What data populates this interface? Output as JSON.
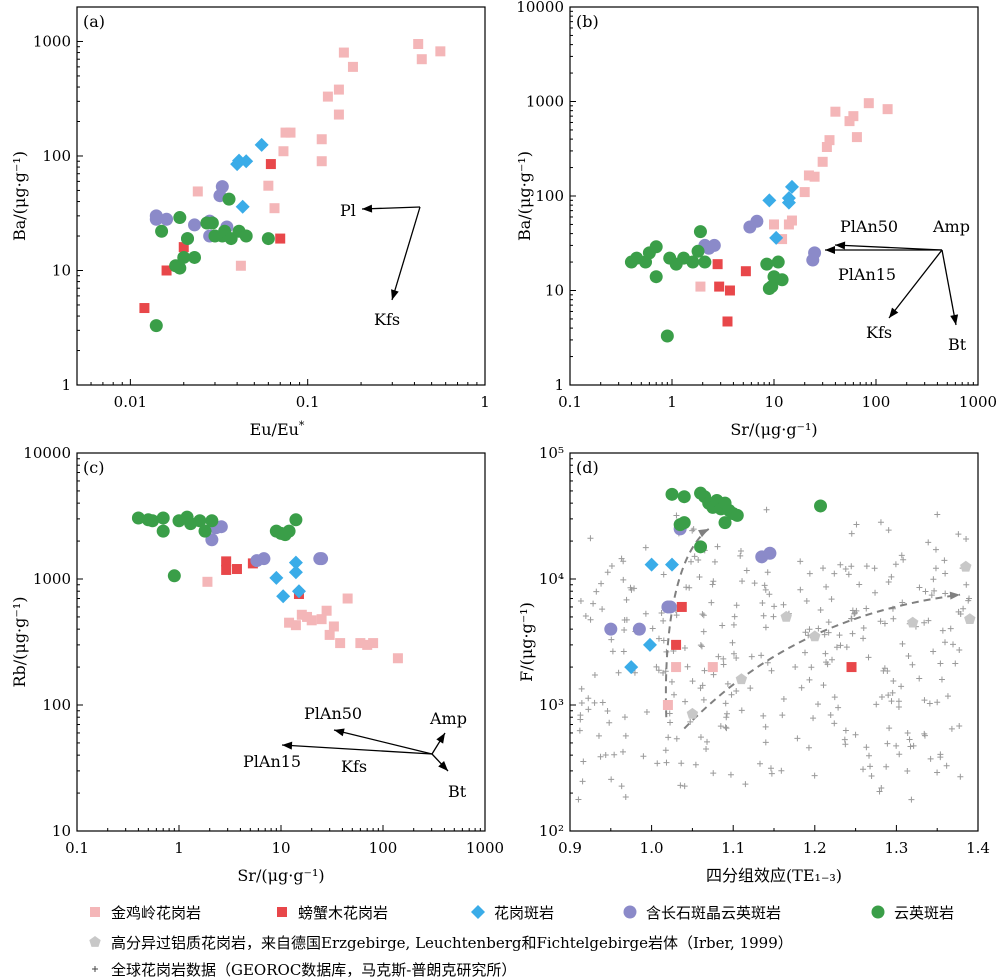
{
  "colors": {
    "jinjiling": "#f4b6b8",
    "pangxiemu": "#e8474a",
    "granite_porphyry": "#3aace8",
    "feldspar_qp": "#8b8ac9",
    "quartz_porphyry": "#3a9e48",
    "hf_granite": "#c8c8c8",
    "global": "#9a9a9a",
    "arrow_gray": "#808080"
  },
  "legend": {
    "jinjiling": "金鸡岭花岗岩",
    "pangxiemu": "螃蟹木花岗岩",
    "granite_porphyry": "花岗斑岩",
    "feldspar_qp": "含长石斑晶云英斑岩",
    "quartz_porphyry": "云英斑岩",
    "hf_granite": "高分异过铝质花岗岩，来自德国Erzgebirge, Leuchtenberg和Fichtelgebirge岩体（Irber, 1999）",
    "global": "全球花岗岩数据（GEOROC数据库，马克斯-普朗克研究所）"
  },
  "chart_data": [
    {
      "type": "scatter",
      "panel": "(a)",
      "xscale": "log",
      "yscale": "log",
      "xlim": [
        0.005,
        1
      ],
      "ylim": [
        1,
        2000
      ],
      "xlabel": "Eu/Eu*",
      "ylabel": "Ba/(μg·g⁻¹)",
      "xticks": [
        "0.01",
        "0.1",
        "1"
      ],
      "yticks": [
        "1",
        "10",
        "100",
        "1000"
      ],
      "series": [
        {
          "key": "jinjiling",
          "marker": "square",
          "points": [
            [
              0.08,
              160
            ],
            [
              0.075,
              160
            ],
            [
              0.12,
              140
            ],
            [
              0.13,
              330
            ],
            [
              0.15,
              380
            ],
            [
              0.16,
              800
            ],
            [
              0.18,
              600
            ],
            [
              0.12,
              90
            ],
            [
              0.15,
              230
            ],
            [
              0.42,
              950
            ],
            [
              0.44,
              700
            ],
            [
              0.56,
              820
            ],
            [
              0.06,
              55
            ],
            [
              0.065,
              35
            ],
            [
              0.073,
              110
            ],
            [
              0.042,
              11
            ],
            [
              0.024,
              49
            ]
          ]
        },
        {
          "key": "pangxiemu",
          "marker": "square",
          "points": [
            [
              0.012,
              4.7
            ],
            [
              0.016,
              10
            ],
            [
              0.02,
              16
            ],
            [
              0.062,
              85
            ],
            [
              0.07,
              19
            ]
          ]
        },
        {
          "key": "granite_porphyry",
          "marker": "diamond",
          "points": [
            [
              0.041,
              91
            ],
            [
              0.043,
              36
            ],
            [
              0.045,
              90
            ],
            [
              0.055,
              125
            ],
            [
              0.04,
              85
            ]
          ]
        },
        {
          "key": "feldspar_qp",
          "marker": "circle",
          "points": [
            [
              0.014,
              30
            ],
            [
              0.014,
              28
            ],
            [
              0.016,
              28
            ],
            [
              0.021,
              19
            ],
            [
              0.023,
              25
            ],
            [
              0.028,
              27
            ],
            [
              0.028,
              20
            ],
            [
              0.032,
              45
            ],
            [
              0.033,
              54
            ],
            [
              0.035,
              24
            ]
          ]
        },
        {
          "key": "quartz_porphyry",
          "marker": "circle",
          "points": [
            [
              0.014,
              3.3
            ],
            [
              0.015,
              22
            ],
            [
              0.018,
              11
            ],
            [
              0.019,
              10.5
            ],
            [
              0.019,
              29
            ],
            [
              0.02,
              13
            ],
            [
              0.021,
              19
            ],
            [
              0.023,
              13
            ],
            [
              0.027,
              26
            ],
            [
              0.029,
              26
            ],
            [
              0.03,
              20
            ],
            [
              0.033,
              20
            ],
            [
              0.034,
              22
            ],
            [
              0.036,
              42
            ],
            [
              0.037,
              19
            ],
            [
              0.041,
              22
            ],
            [
              0.045,
              20
            ],
            [
              0.06,
              19
            ]
          ]
        }
      ],
      "annotations": [
        "Pl",
        "Kfs"
      ]
    },
    {
      "type": "scatter",
      "panel": "(b)",
      "xscale": "log",
      "yscale": "log",
      "xlim": [
        0.1,
        1000
      ],
      "ylim": [
        1,
        10000
      ],
      "xlabel": "Sr/(μg·g⁻¹)",
      "ylabel": "Ba/(μg·g⁻¹)",
      "xticks": [
        "0.1",
        "1",
        "10",
        "100",
        "1000"
      ],
      "yticks": [
        "1",
        "10",
        "100",
        "1000",
        "10000"
      ],
      "series": [
        {
          "key": "jinjiling",
          "marker": "square",
          "points": [
            [
              1.9,
              11
            ],
            [
              10,
              50
            ],
            [
              12,
              35
            ],
            [
              15,
              55
            ],
            [
              20,
              110
            ],
            [
              22,
              165
            ],
            [
              25,
              160
            ],
            [
              30,
              230
            ],
            [
              33,
              330
            ],
            [
              35,
              390
            ],
            [
              40,
              780
            ],
            [
              55,
              620
            ],
            [
              60,
              700
            ],
            [
              65,
              420
            ],
            [
              85,
              960
            ],
            [
              130,
              830
            ],
            [
              14,
              50
            ]
          ]
        },
        {
          "key": "pangxiemu",
          "marker": "square",
          "points": [
            [
              2.8,
              19
            ],
            [
              2.9,
              11
            ],
            [
              3.7,
              10
            ],
            [
              3.5,
              4.7
            ],
            [
              5.3,
              16
            ]
          ]
        },
        {
          "key": "granite_porphyry",
          "marker": "diamond",
          "points": [
            [
              9,
              90
            ],
            [
              10.5,
              36
            ],
            [
              14,
              85
            ],
            [
              15,
              125
            ],
            [
              14,
              95
            ]
          ]
        },
        {
          "key": "feldspar_qp",
          "marker": "circle",
          "points": [
            [
              2.1,
              30
            ],
            [
              2.3,
              28
            ],
            [
              2.6,
              30
            ],
            [
              5.8,
              47
            ],
            [
              6.8,
              54
            ],
            [
              25,
              25
            ],
            [
              24,
              21
            ]
          ]
        },
        {
          "key": "quartz_porphyry",
          "marker": "circle",
          "points": [
            [
              0.4,
              20
            ],
            [
              0.45,
              22
            ],
            [
              0.55,
              20
            ],
            [
              0.6,
              25
            ],
            [
              0.7,
              29
            ],
            [
              0.7,
              14
            ],
            [
              0.9,
              3.3
            ],
            [
              0.95,
              22
            ],
            [
              1.1,
              19
            ],
            [
              1.3,
              22
            ],
            [
              1.6,
              20
            ],
            [
              1.8,
              26
            ],
            [
              1.9,
              42
            ],
            [
              2.1,
              20
            ],
            [
              8.5,
              19
            ],
            [
              9,
              10.5
            ],
            [
              9.5,
              11
            ],
            [
              10,
              14
            ],
            [
              11,
              20
            ],
            [
              12,
              13
            ]
          ]
        }
      ],
      "annotations": [
        "PlAn50",
        "Amp",
        "PlAn15",
        "Kfs",
        "Bt"
      ]
    },
    {
      "type": "scatter",
      "panel": "(c)",
      "xscale": "log",
      "yscale": "log",
      "xlim": [
        0.1,
        1000
      ],
      "ylim": [
        10,
        10000
      ],
      "xlabel": "Sr/(μg·g⁻¹)",
      "ylabel": "Rb/(μg·g⁻¹)",
      "xticks": [
        "0.1",
        "1",
        "10",
        "100",
        "1000"
      ],
      "yticks": [
        "10",
        "100",
        "1000",
        "10000"
      ],
      "series": [
        {
          "key": "jinjiling",
          "marker": "square",
          "points": [
            [
              1.9,
              950
            ],
            [
              12,
              450
            ],
            [
              14,
              430
            ],
            [
              16,
              520
            ],
            [
              20,
              470
            ],
            [
              25,
              480
            ],
            [
              28,
              560
            ],
            [
              30,
              360
            ],
            [
              33,
              420
            ],
            [
              38,
              310
            ],
            [
              45,
              700
            ],
            [
              60,
              310
            ],
            [
              70,
              300
            ],
            [
              80,
              310
            ],
            [
              140,
              235
            ],
            [
              18,
              500
            ]
          ]
        },
        {
          "key": "pangxiemu",
          "marker": "square",
          "points": [
            [
              2.9,
              1380
            ],
            [
              2.9,
              1180
            ],
            [
              3.7,
              1200
            ],
            [
              5.3,
              1330
            ],
            [
              15,
              760
            ]
          ]
        },
        {
          "key": "granite_porphyry",
          "marker": "diamond",
          "points": [
            [
              9,
              1020
            ],
            [
              10.5,
              730
            ],
            [
              14,
              1350
            ],
            [
              15,
              800
            ],
            [
              14,
              1130
            ]
          ]
        },
        {
          "key": "feldspar_qp",
          "marker": "circle",
          "points": [
            [
              2.1,
              2050
            ],
            [
              2.3,
              2550
            ],
            [
              2.6,
              2600
            ],
            [
              5.8,
              1400
            ],
            [
              6.8,
              1450
            ],
            [
              25,
              1450
            ],
            [
              24,
              1450
            ]
          ]
        },
        {
          "key": "quartz_porphyry",
          "marker": "circle",
          "points": [
            [
              0.4,
              3050
            ],
            [
              0.5,
              2950
            ],
            [
              0.55,
              2900
            ],
            [
              0.7,
              3050
            ],
            [
              0.7,
              2400
            ],
            [
              0.9,
              1060
            ],
            [
              1.0,
              2900
            ],
            [
              1.2,
              3100
            ],
            [
              1.3,
              2750
            ],
            [
              1.6,
              2900
            ],
            [
              1.8,
              2400
            ],
            [
              2.1,
              2900
            ],
            [
              9,
              2400
            ],
            [
              10,
              2300
            ],
            [
              11,
              2250
            ],
            [
              12,
              2400
            ],
            [
              14,
              2950
            ]
          ]
        }
      ],
      "annotations": [
        "PlAn50",
        "Amp",
        "PlAn15",
        "Kfs",
        "Bt"
      ]
    },
    {
      "type": "scatter",
      "panel": "(d)",
      "xscale": "linear",
      "yscale": "log",
      "xlim": [
        0.9,
        1.4
      ],
      "ylim": [
        100,
        100000
      ],
      "xlabel": "四分组效应(TE₁₋₃)",
      "ylabel": "F/(μg·g⁻¹)",
      "xticks": [
        "0.9",
        "1.0",
        "1.1",
        "1.2",
        "1.3",
        "1.4"
      ],
      "yticks": [
        "10²",
        "10³",
        "10⁴",
        "10⁵"
      ],
      "series": [
        {
          "key": "jinjiling",
          "marker": "square",
          "points": [
            [
              1.02,
              1000
            ],
            [
              1.03,
              2000
            ],
            [
              1.075,
              2000
            ]
          ]
        },
        {
          "key": "pangxiemu",
          "marker": "square",
          "points": [
            [
              1.03,
              3000
            ],
            [
              1.037,
              6000
            ],
            [
              1.245,
              2000
            ]
          ]
        },
        {
          "key": "granite_porphyry",
          "marker": "diamond",
          "points": [
            [
              0.975,
              2000
            ],
            [
              0.998,
              3000
            ],
            [
              1.0,
              13000
            ],
            [
              1.025,
              13000
            ]
          ]
        },
        {
          "key": "feldspar_qp",
          "marker": "circle",
          "points": [
            [
              0.95,
              4000
            ],
            [
              0.985,
              4000
            ],
            [
              1.02,
              6000
            ],
            [
              1.023,
              6000
            ],
            [
              1.135,
              15000
            ],
            [
              1.145,
              16000
            ],
            [
              1.035,
              25000
            ]
          ]
        },
        {
          "key": "quartz_porphyry",
          "marker": "circle",
          "points": [
            [
              1.025,
              47000
            ],
            [
              1.04,
              45000
            ],
            [
              1.06,
              48000
            ],
            [
              1.065,
              45000
            ],
            [
              1.07,
              40000
            ],
            [
              1.075,
              37000
            ],
            [
              1.08,
              42000
            ],
            [
              1.085,
              36000
            ],
            [
              1.09,
              40000
            ],
            [
              1.095,
              35000
            ],
            [
              1.1,
              33000
            ],
            [
              1.105,
              32000
            ],
            [
              1.09,
              28000
            ],
            [
              1.04,
              28000
            ],
            [
              1.035,
              27000
            ],
            [
              1.06,
              18000
            ],
            [
              1.207,
              38000
            ]
          ]
        },
        {
          "key": "hf_granite",
          "marker": "pentagon",
          "points": [
            [
              1.05,
              850
            ],
            [
              1.11,
              1600
            ],
            [
              1.165,
              5000
            ],
            [
              1.2,
              3500
            ],
            [
              1.32,
              4500
            ],
            [
              1.385,
              12500
            ],
            [
              1.39,
              4800
            ]
          ]
        }
      ],
      "annotations": []
    }
  ]
}
